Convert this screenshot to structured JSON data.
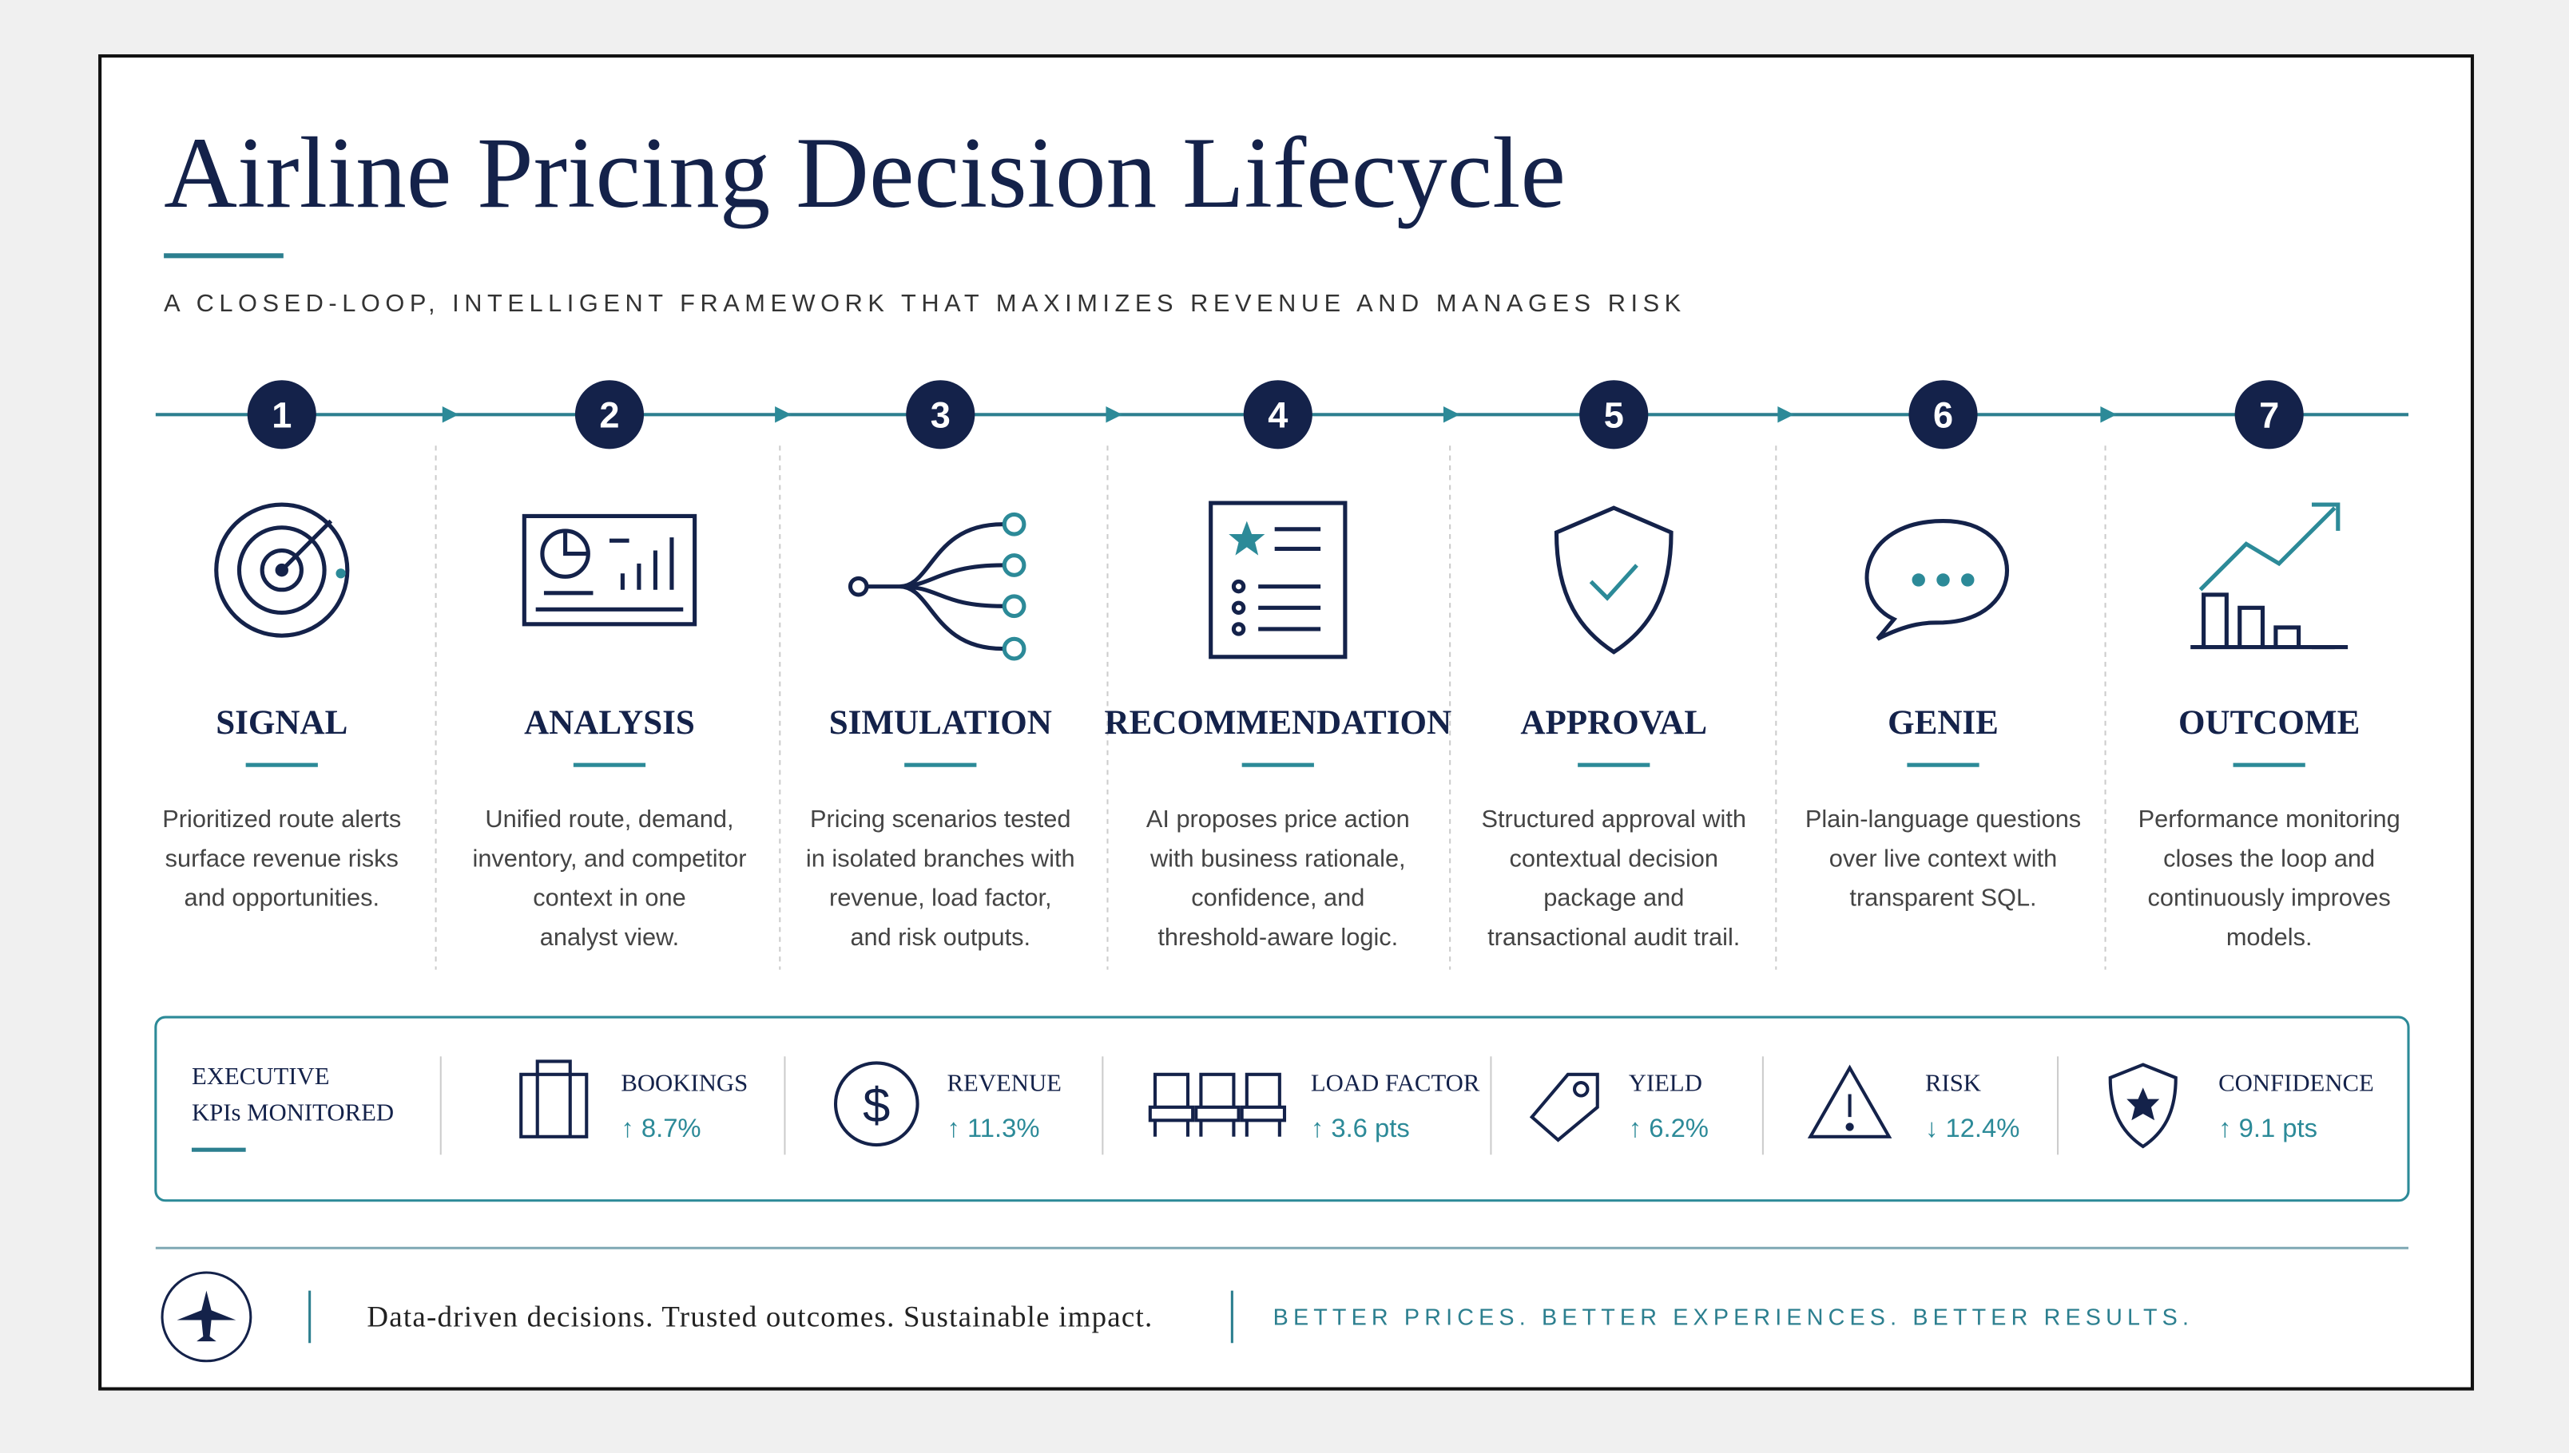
{
  "header": {
    "title": "Airline Pricing Decision Lifecycle",
    "subtitle": "A CLOSED-LOOP, INTELLIGENT FRAMEWORK THAT MAXIMIZES REVENUE AND MANAGES RISK"
  },
  "steps": [
    {
      "number": "1",
      "title": "SIGNAL",
      "description": [
        "Prioritized route alerts",
        "surface revenue risks",
        "and opportunities."
      ]
    },
    {
      "number": "2",
      "title": "ANALYSIS",
      "description": [
        "Unified route, demand,",
        "inventory, and competitor",
        "context in one",
        "analyst view."
      ]
    },
    {
      "number": "3",
      "title": "SIMULATION",
      "description": [
        "Pricing scenarios tested",
        "in isolated branches with",
        "revenue, load factor,",
        "and risk outputs."
      ]
    },
    {
      "number": "4",
      "title": "RECOMMENDATION",
      "description": [
        "AI proposes price action",
        "with business rationale,",
        "confidence, and",
        "threshold-aware logic."
      ]
    },
    {
      "number": "5",
      "title": "APPROVAL",
      "description": [
        "Structured approval with",
        "contextual decision",
        "package and",
        "transactional audit trail."
      ]
    },
    {
      "number": "6",
      "title": "GENIE",
      "description": [
        "Plain-language questions",
        "over live context with",
        "transparent SQL."
      ]
    },
    {
      "number": "7",
      "title": "OUTCOME",
      "description": [
        "Performance monitoring",
        "closes the loop and",
        "continuously improves",
        "models."
      ]
    }
  ],
  "kpis": {
    "label": [
      "EXECUTIVE",
      "KPIs MONITORED"
    ],
    "items": [
      {
        "name": "BOOKINGS",
        "change": "↑ 8.7%"
      },
      {
        "name": "REVENUE",
        "change": "↑ 11.3%"
      },
      {
        "name": "LOAD FACTOR",
        "change": "↑ 3.6 pts"
      },
      {
        "name": "YIELD",
        "change": "↑ 6.2%"
      },
      {
        "name": "RISK",
        "change": "↓ 12.4%"
      },
      {
        "name": "CONFIDENCE",
        "change": "↑ 9.1 pts"
      }
    ]
  },
  "footer": {
    "tagline": "Data-driven decisions. Trusted outcomes. Sustainable impact.",
    "slogan": "BETTER PRICES. BETTER EXPERIENCES. BETTER RESULTS."
  }
}
